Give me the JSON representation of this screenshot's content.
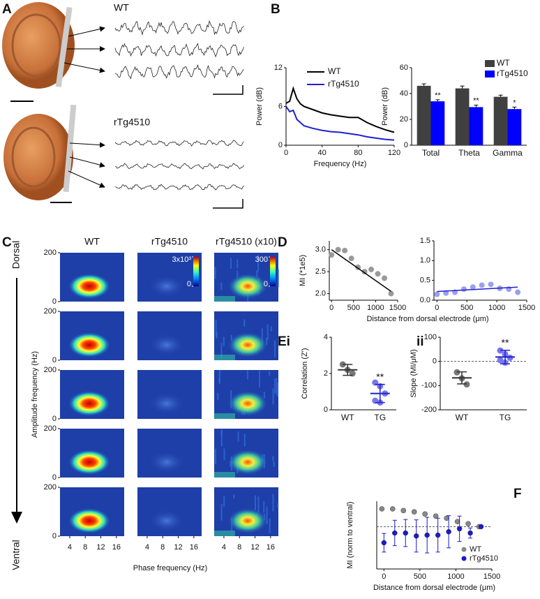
{
  "panel_letters": [
    "A",
    "B",
    "C",
    "D",
    "Ei",
    "ii",
    "F"
  ],
  "panel_a": {
    "wt_label": "WT",
    "tg_label": "rTg4510"
  },
  "heatmaps": {
    "columns": [
      "WT",
      "rTg4510",
      "rTg4510 (x10)"
    ],
    "top_label": "Dorsal",
    "bottom_label": "Ventral",
    "ylabel": "Amplitude frequency (Hz)",
    "xlabel": "Phase frequency (Hz)",
    "ylim": [
      0,
      200
    ],
    "yticks": [
      0,
      200
    ],
    "xlim": [
      1.5,
      18
    ],
    "xticks": [
      4,
      8,
      12,
      16
    ],
    "colorbars": [
      {
        "min": 0,
        "max": {
          "value": 3000,
          "label": "3x10³"
        }
      },
      {
        "min": 0,
        "max": 300
      }
    ]
  },
  "chart_data": [
    {
      "type": "line",
      "xlabel": "Frequency (Hz)",
      "ylabel": "Power (dB)",
      "xlim": [
        0,
        120
      ],
      "ylim": [
        0,
        12
      ],
      "xticks": [
        0,
        40,
        80,
        120
      ],
      "yticks": [
        0,
        6,
        12
      ],
      "x": [
        0,
        4,
        8,
        12,
        16,
        20,
        30,
        40,
        50,
        60,
        70,
        80,
        90,
        100,
        110,
        120
      ],
      "series": [
        {
          "name": "WT",
          "color": "#000000",
          "values": [
            6.5,
            6.8,
            8.8,
            7.2,
            6.4,
            6.0,
            5.5,
            5.0,
            4.7,
            4.5,
            4.3,
            4.3,
            3.5,
            2.9,
            2.4,
            2.0
          ]
        },
        {
          "name": "rTg4510",
          "color": "#2020d0",
          "values": [
            6.0,
            5.2,
            5.4,
            4.0,
            3.5,
            3.0,
            2.6,
            2.3,
            2.1,
            2.0,
            1.8,
            1.6,
            1.3,
            1.1,
            0.9,
            0.8
          ]
        }
      ]
    },
    {
      "type": "bar",
      "ylabel": "Power (dB)",
      "ylim": [
        0,
        60
      ],
      "yticks": [
        0,
        20,
        40,
        60
      ],
      "categories": [
        "Total",
        "Theta",
        "Gamma"
      ],
      "series": [
        {
          "name": "WT",
          "color": "#404040",
          "values": [
            46,
            44,
            37.5
          ],
          "errors": [
            1.5,
            1.8,
            1.3
          ]
        },
        {
          "name": "rTg4510",
          "color": "#0000ff",
          "values": [
            34,
            29.5,
            28
          ],
          "errors": [
            1.2,
            1.5,
            1.5
          ]
        }
      ],
      "annotations": [
        "**",
        "**",
        "*"
      ]
    },
    {
      "type": "scatter",
      "ylabel": "MI (*1e5)",
      "xlabel": "Distance from dorsal electrode (μm)",
      "xlim": [
        -50,
        1500
      ],
      "ylim": [
        1.85,
        3.2
      ],
      "xticks": [
        0,
        500,
        1000,
        1500
      ],
      "yticks": [
        {
          "value": 2,
          "label": "2.0"
        },
        {
          "value": 2.5,
          "label": "2.5"
        },
        {
          "value": 3,
          "label": "3.0"
        }
      ],
      "x": [
        0,
        150,
        300,
        450,
        600,
        750,
        900,
        1050,
        1200,
        1350
      ],
      "series": [
        {
          "color": "#999999",
          "values": [
            2.88,
            3.0,
            2.98,
            2.8,
            2.6,
            2.5,
            2.55,
            2.45,
            2.35,
            2.0
          ]
        }
      ],
      "fit_x": [
        0,
        1350
      ],
      "fit_y": [
        3.0,
        2.05
      ],
      "fit_color": "#000000"
    },
    {
      "type": "scatter",
      "xlim": [
        -50,
        1500
      ],
      "ylim": [
        0,
        1.5
      ],
      "xticks": [
        0,
        500,
        1000,
        1500
      ],
      "yticks": [
        {
          "value": 0,
          "label": "0.0"
        },
        {
          "value": 0.5,
          "label": "0.5"
        },
        {
          "value": 1,
          "label": "1.0"
        },
        {
          "value": 1.5,
          "label": "1.5"
        }
      ],
      "x": [
        0,
        150,
        300,
        450,
        600,
        750,
        900,
        1050,
        1200,
        1350
      ],
      "series": [
        {
          "color": "#9aa0ee",
          "values": [
            0.15,
            0.18,
            0.2,
            0.28,
            0.33,
            0.38,
            0.4,
            0.3,
            0.28,
            0.2
          ]
        }
      ],
      "fit_x": [
        0,
        1350
      ],
      "fit_y": [
        0.22,
        0.33
      ],
      "fit_color": "#2020d0"
    },
    {
      "type": "dot",
      "ylabel": "Correlation (Z')",
      "ylim": [
        0,
        4
      ],
      "yticks": [
        0,
        2,
        4
      ],
      "categories": [
        "WT",
        "TG"
      ],
      "groups": [
        {
          "color": "#777777",
          "points": [
            2.5,
            2.2,
            2.0
          ],
          "mean": 2.2,
          "sd": 0.3
        },
        {
          "color": "#7777ee",
          "points": [
            1.5,
            1.3,
            0.9,
            0.5,
            0.4
          ],
          "mean": 0.9,
          "sd": 0.5
        }
      ],
      "annotations": [
        null,
        "**"
      ]
    },
    {
      "type": "dot",
      "ylabel": "Slope (MI/μM)",
      "ylim": [
        -200,
        100
      ],
      "yticks": [
        -200,
        -100,
        0,
        100
      ],
      "categories": [
        "WT",
        "TG"
      ],
      "reference_line": 0,
      "groups": [
        {
          "color": "#777777",
          "points": [
            -45,
            -70,
            -95
          ],
          "mean": -68,
          "sd": 25
        },
        {
          "color": "#7777ee",
          "points": [
            45,
            30,
            15,
            5,
            -5
          ],
          "mean": 18,
          "sd": 28
        }
      ],
      "annotations": [
        null,
        "**"
      ]
    },
    {
      "type": "errorscatter",
      "ylabel": "MI (norm to ventral)",
      "xlabel": "Distance from  dorsal electrode (μm)",
      "xlim": [
        -100,
        1500
      ],
      "ylim": [
        0,
        1.6
      ],
      "xticks": [
        0,
        500,
        1000,
        1500
      ],
      "reference_line": 1,
      "x": [
        0,
        150,
        300,
        450,
        600,
        750,
        900,
        1050,
        1200,
        1350
      ],
      "series": [
        {
          "name": "WT",
          "color": "#888888",
          "values": [
            1.42,
            1.42,
            1.38,
            1.35,
            1.3,
            1.25,
            1.2,
            1.12,
            1.07,
            1.0
          ],
          "errors": [
            0.03,
            0.03,
            0.04,
            0.04,
            0.04,
            0.04,
            0.03,
            0.03,
            0.03,
            0
          ]
        },
        {
          "name": "rTg4510",
          "color": "#1a1ad0",
          "values": [
            0.62,
            0.85,
            0.85,
            0.78,
            0.8,
            0.8,
            0.88,
            0.95,
            0.85,
            1.0
          ],
          "errors": [
            0.22,
            0.3,
            0.32,
            0.38,
            0.42,
            0.4,
            0.38,
            0.3,
            0.12,
            0
          ]
        }
      ]
    }
  ]
}
